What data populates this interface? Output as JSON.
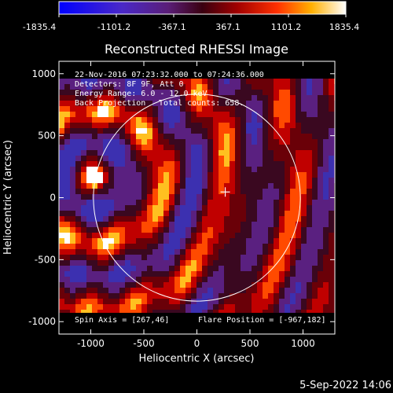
{
  "colorbar": {
    "ticks": [
      "-1835.4",
      "-1101.2",
      "-367.1",
      "367.1",
      "1101.2",
      "1835.4"
    ],
    "min": -1835.4,
    "max": 1835.4
  },
  "plot": {
    "title": "Reconstructed RHESSI Image",
    "xlabel": "Heliocentric X (arcsec)",
    "ylabel": "Heliocentric Y (arcsec)",
    "xlim": [
      -1300,
      1300
    ],
    "ylim": [
      -1100,
      1100
    ],
    "xticks": [
      "-1000",
      "-500",
      "0",
      "500",
      "1000"
    ],
    "yticks": [
      "1000",
      "500",
      "0",
      "-500",
      "-1000"
    ],
    "xtick_values": [
      -1000,
      -500,
      0,
      500,
      1000
    ],
    "ytick_values": [
      1000,
      500,
      0,
      -500,
      -1000
    ]
  },
  "info": {
    "line1": "22-Nov-2016 07:23:32.000 to 07:24:36.000",
    "line2": "Detectors: 8F 9F, Att 0",
    "line3": "Energy Range: 6.0 - 12.0 keV",
    "line4_left": "Back Projection",
    "line4_right": "Total counts: 658."
  },
  "footer": {
    "spin_axis": "Spin Axis = [267,46]",
    "flare_position": "Flare Position = [-967,182]"
  },
  "timestamp": "5-Sep-2022 14:06",
  "overlay": {
    "limb_radius_arcsec": 975,
    "crosshair": [
      267,
      46
    ]
  }
}
